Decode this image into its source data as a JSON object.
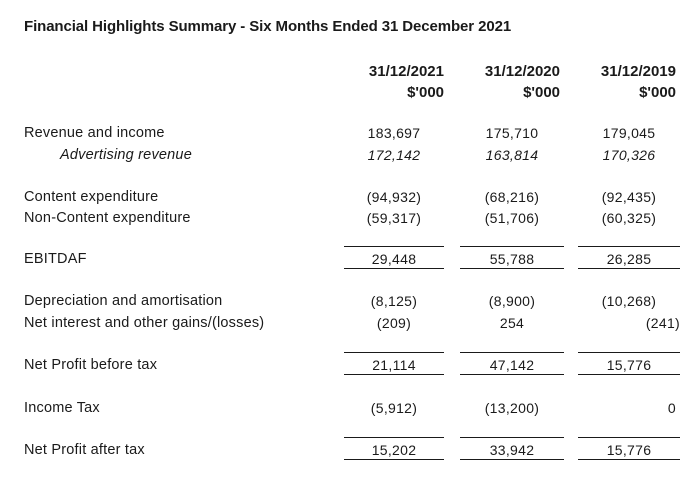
{
  "title": "Financial Highlights Summary - Six Months Ended 31 December 2021",
  "columns": [
    {
      "date": "31/12/2021",
      "unit": "$'000"
    },
    {
      "date": "31/12/2020",
      "unit": "$'000"
    },
    {
      "date": "31/12/2019",
      "unit": "$'000"
    }
  ],
  "rows": {
    "revenue": {
      "label": "Revenue and income",
      "values": [
        "183,697",
        "175,710",
        "179,045"
      ]
    },
    "advertising": {
      "label": "Advertising revenue",
      "values": [
        "172,142",
        "163,814",
        "170,326"
      ]
    },
    "content": {
      "label": "Content expenditure",
      "values": [
        "(94,932)",
        "(68,216)",
        "(92,435)"
      ]
    },
    "noncontent": {
      "label": "Non-Content expenditure",
      "values": [
        "(59,317)",
        "(51,706)",
        "(60,325)"
      ]
    },
    "ebitdaf": {
      "label": "EBITDAF",
      "values": [
        "29,448",
        "55,788",
        "26,285"
      ]
    },
    "depreciation": {
      "label": "Depreciation and amortisation",
      "values": [
        "(8,125)",
        "(8,900)",
        "(10,268)"
      ]
    },
    "interest": {
      "label": "Net interest and other gains/(losses)",
      "values": [
        "(209)",
        "254",
        "(241)"
      ]
    },
    "npbt": {
      "label": "Net Profit before tax",
      "values": [
        "21,114",
        "47,142",
        "15,776"
      ]
    },
    "tax": {
      "label": "Income Tax",
      "values": [
        "(5,912)",
        "(13,200)",
        "0"
      ]
    },
    "npat": {
      "label": "Net Profit after tax",
      "values": [
        "15,202",
        "33,942",
        "15,776"
      ]
    }
  }
}
